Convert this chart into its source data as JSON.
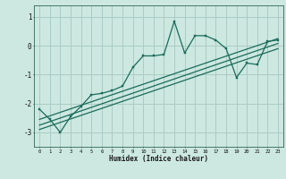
{
  "title": "",
  "xlabel": "Humidex (Indice chaleur)",
  "background_color": "#cce8e0",
  "grid_color": "#aaccc4",
  "line_color": "#1a6b5a",
  "x_ticks": [
    0,
    1,
    2,
    3,
    4,
    5,
    6,
    7,
    8,
    9,
    10,
    11,
    12,
    13,
    14,
    15,
    16,
    17,
    18,
    19,
    20,
    21,
    22,
    23
  ],
  "ylim": [
    -3.5,
    1.4
  ],
  "xlim": [
    -0.5,
    23.5
  ],
  "yticks": [
    -3,
    -2,
    -1,
    0,
    1
  ],
  "curve1_x": [
    0,
    1,
    2,
    3,
    4,
    5,
    6,
    7,
    8,
    9,
    10,
    11,
    12,
    13,
    14,
    15,
    16,
    17,
    18,
    19,
    20,
    21,
    22,
    23
  ],
  "curve1_y": [
    -2.2,
    -2.55,
    -3.0,
    -2.45,
    -2.1,
    -1.7,
    -1.65,
    -1.55,
    -1.4,
    -0.75,
    -0.35,
    -0.35,
    -0.3,
    0.85,
    -0.25,
    0.35,
    0.35,
    0.2,
    -0.1,
    -1.1,
    -0.6,
    -0.65,
    0.15,
    0.2
  ],
  "line1_x": [
    0,
    23
  ],
  "line1_y": [
    -2.55,
    0.25
  ],
  "line2_x": [
    0,
    23
  ],
  "line2_y": [
    -2.75,
    0.08
  ],
  "line3_x": [
    0,
    23
  ],
  "line3_y": [
    -2.9,
    -0.1
  ]
}
